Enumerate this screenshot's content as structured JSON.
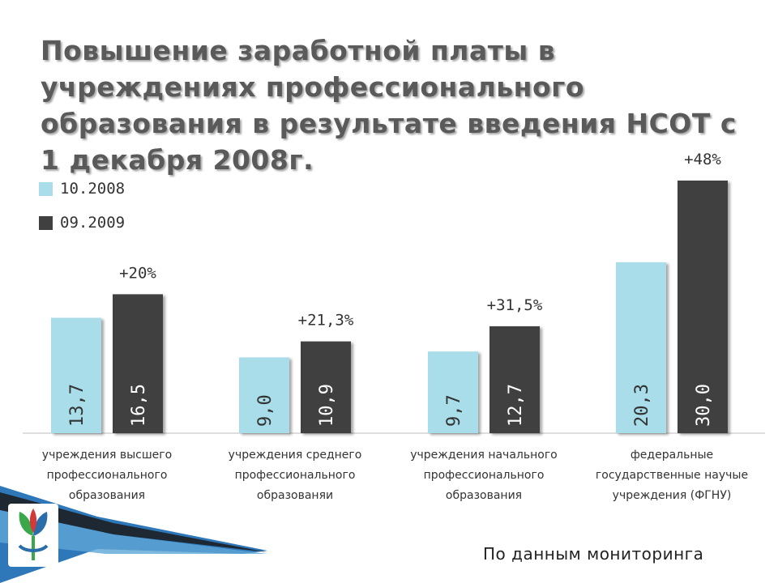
{
  "title": "Повышение заработной платы в учреждениях профессионального образования в результате введения НСОТ с 1 декабря 2008г.",
  "source_note": "По данным мониторинга",
  "colors": {
    "series_1": "#a8dde9",
    "series_2": "#404040",
    "title": "#5a5a5a",
    "logo_blue": "#2a6da8",
    "logo_green": "#3aa84a",
    "logo_red": "#d23a3a"
  },
  "icons": {
    "logo": "trade-union-flower-logo"
  },
  "chart_data": {
    "type": "bar",
    "categories": [
      "учреждения высшего\nпрофессионального\nобразования",
      "учреждения среднего\nпрофессионального\nобразованяи",
      "учреждения начального\nпрофессионального\nобразования",
      "федеральные\nгосударственные научые\nучреждения (ФГНУ)"
    ],
    "series": [
      {
        "name": "10.2008",
        "values": [
          13.7,
          9.0,
          9.7,
          20.3
        ],
        "labels": [
          "13,7",
          "9,0",
          "9,7",
          "20,3"
        ],
        "color": "#a8dde9"
      },
      {
        "name": "09.2009",
        "values": [
          16.5,
          10.9,
          12.7,
          30.0
        ],
        "labels": [
          "16,5",
          "10,9",
          "12,7",
          "30,0"
        ],
        "color": "#404040"
      }
    ],
    "growth_labels": [
      "+20%",
      "+21,3%",
      "+31,5%",
      "+48%"
    ],
    "ylim": [
      0,
      32
    ],
    "grid": false,
    "legend_position": "top-left",
    "title": "",
    "xlabel": "",
    "ylabel": ""
  }
}
